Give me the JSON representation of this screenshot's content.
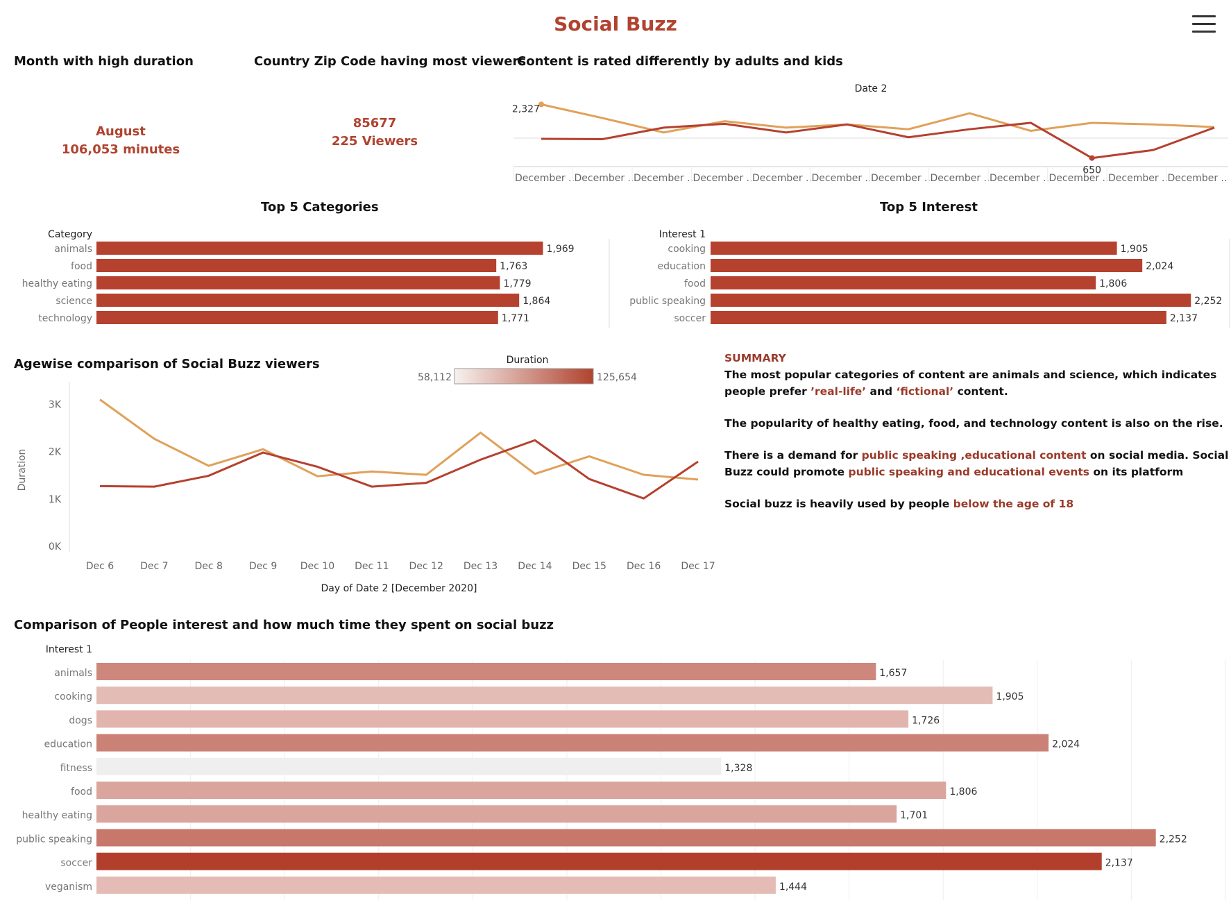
{
  "header": {
    "title": "Social Buzz"
  },
  "kpis": {
    "month_title": "Month with high duration",
    "month_value": "August",
    "month_minutes": "106,053 minutes",
    "zip_title": "Country  Zip Code having most viewers",
    "zip_value": "85677",
    "zip_viewers": "225   Viewers"
  },
  "top_line": {
    "title": "Content is rated differently by adults and kids",
    "header": "Date 2",
    "max_label": "2,327",
    "min_label": "650",
    "tick_label": "December ..",
    "tick_count": 12
  },
  "top_categories": {
    "title": "Top 5 Categories",
    "header": "Category"
  },
  "top_interest": {
    "title": "Top 5 Interest",
    "header": "Interest 1"
  },
  "agewise": {
    "title": "Agewise comparison of Social Buzz viewers",
    "legend_title": "Duration",
    "legend_min": "58,112",
    "legend_max": "125,654",
    "ylabel": "Duration",
    "xlabel": "Day of Date 2 [December 2020]",
    "yticks": [
      "0K",
      "1K",
      "2K",
      "3K"
    ]
  },
  "summary": {
    "heading": "SUMMARY",
    "p1_a": "The most popular categories of content are animals and science, which indicates people prefer ",
    "p1_hl1": "’real-life’",
    "p1_b": " and ",
    "p1_hl2": "‘fictional’",
    "p1_c": " content.",
    "p2": "The popularity of healthy eating, food, and technology content is also on the rise.",
    "p3_a": "There is a demand for ",
    "p3_hl1": "public speaking ,educational content",
    "p3_b": " on social media. Social Buzz could promote ",
    "p3_hl2": "public speaking and educational events",
    "p3_c": " on its platform",
    "p4_a": "Social buzz is heavily used by people ",
    "p4_hl": "below the age of 18"
  },
  "comparison": {
    "title": "Comparison of People interest and how much time they spent on social buzz",
    "header": "Interest 1"
  },
  "colors": {
    "accent": "#b0432f",
    "orange": "#e0a15a",
    "red": "#b5412f"
  },
  "chart_data": [
    {
      "type": "line",
      "title": "Content is rated differently by adults and kids",
      "xlabel": "Date 2",
      "x": [
        "December ..",
        "December ..",
        "December ..",
        "December ..",
        "December ..",
        "December ..",
        "December ..",
        "December ..",
        "December ..",
        "December ..",
        "December ..",
        "December .."
      ],
      "series": [
        {
          "values": [
            2327,
            1900,
            1450,
            1800,
            1600,
            1700,
            1550,
            2050,
            1500,
            1750,
            1700,
            1620
          ]
        },
        {
          "values": [
            1250,
            1240,
            1600,
            1720,
            1450,
            1700,
            1300,
            1550,
            1750,
            650,
            900,
            1600
          ]
        }
      ],
      "annotations": [
        "2,327",
        "650"
      ]
    },
    {
      "type": "bar",
      "title": "Top 5 Categories",
      "ylabel": "Category",
      "categories": [
        "animals",
        "food",
        "healthy eating",
        "science",
        "technology"
      ],
      "values": [
        1969,
        1763,
        1779,
        1864,
        1771
      ],
      "value_labels": [
        "1,969",
        "1,763",
        "1,779",
        "1,864",
        "1,771"
      ],
      "xlim": [
        0,
        2200
      ]
    },
    {
      "type": "bar",
      "title": "Top 5 Interest",
      "ylabel": "Interest 1",
      "categories": [
        "cooking",
        "education",
        "food",
        "public speaking",
        "soccer"
      ],
      "values": [
        1905,
        2024,
        1806,
        2252,
        2137
      ],
      "value_labels": [
        "1,905",
        "2,024",
        "1,806",
        "2,252",
        "2,137"
      ],
      "xlim": [
        0,
        2300
      ]
    },
    {
      "type": "line",
      "title": "Agewise comparison of Social Buzz viewers",
      "xlabel": "Day of Date 2 [December 2020]",
      "ylabel": "Duration",
      "categories": [
        "Dec 6",
        "Dec 7",
        "Dec 8",
        "Dec 9",
        "Dec 10",
        "Dec 11",
        "Dec 12",
        "Dec 13",
        "Dec 14",
        "Dec 15",
        "Dec 16",
        "Dec 17"
      ],
      "series": [
        {
          "values": [
            3100,
            2270,
            1700,
            2050,
            1480,
            1580,
            1510,
            2400,
            1530,
            1900,
            1510,
            1410
          ]
        },
        {
          "values": [
            1270,
            1260,
            1490,
            1980,
            1680,
            1260,
            1340,
            1830,
            2240,
            1420,
            1010,
            1790
          ]
        }
      ],
      "ylim": [
        0,
        3300
      ],
      "legend": "Duration 58,112 – 125,654"
    },
    {
      "type": "bar",
      "title": "Comparison of People interest and how much time they spent on social buzz",
      "ylabel": "Interest 1",
      "categories": [
        "animals",
        "cooking",
        "dogs",
        "education",
        "fitness",
        "food",
        "healthy eating",
        "public speaking",
        "soccer",
        "veganism"
      ],
      "values": [
        1657,
        1905,
        1726,
        2024,
        1328,
        1806,
        1701,
        2252,
        2137,
        1444
      ],
      "value_labels": [
        "1,657",
        "1,905",
        "1,726",
        "2,024",
        "1,328",
        "1,806",
        "1,701",
        "2,252",
        "2,137",
        "1,444"
      ],
      "colors": [
        "#cd877c",
        "#e3bcb5",
        "#e1b5ad",
        "#cb8276",
        "#efefef",
        "#d9a59d",
        "#d9a59d",
        "#c7786b",
        "#b13f2c",
        "#e4bcb5"
      ],
      "xlim": [
        0,
        2400
      ]
    }
  ]
}
